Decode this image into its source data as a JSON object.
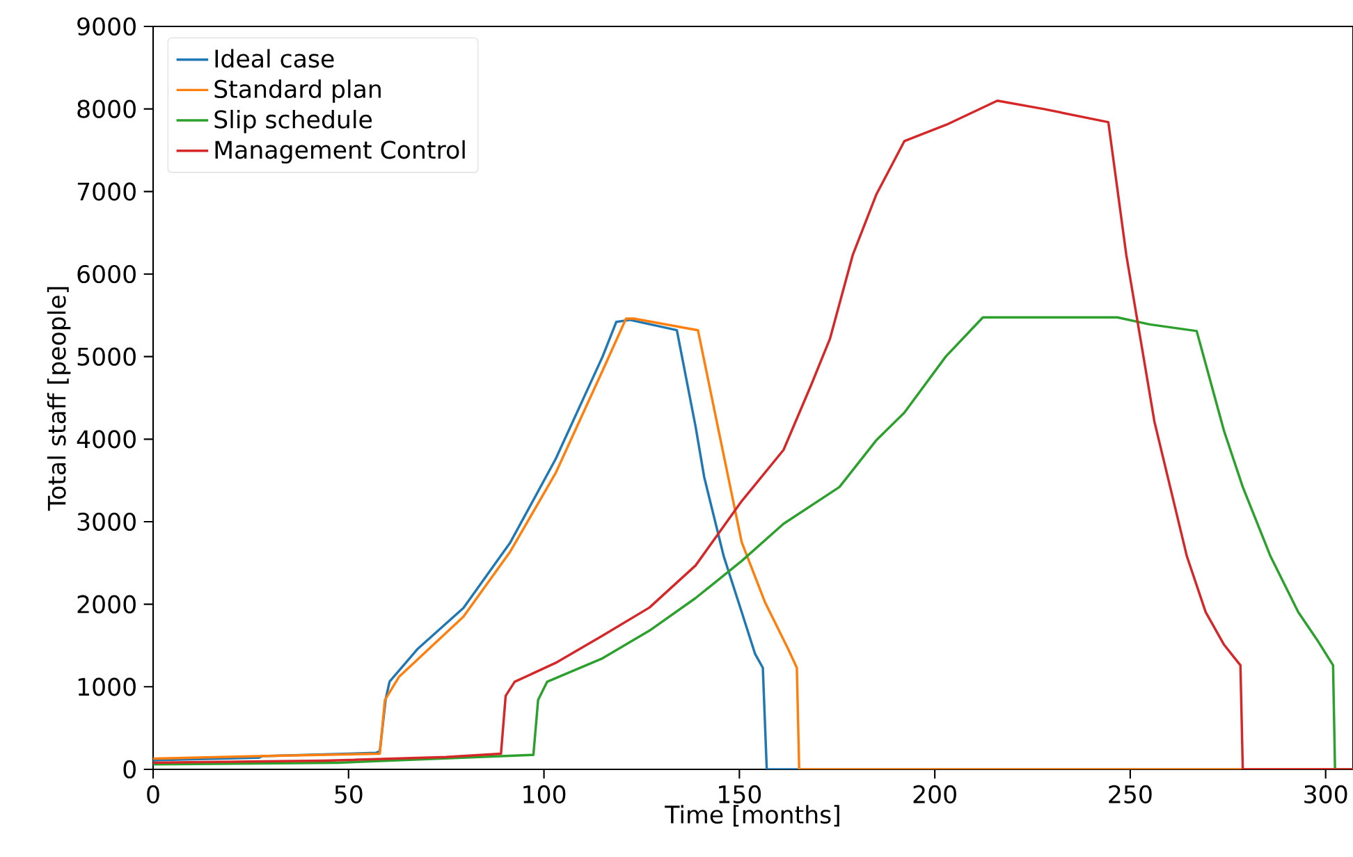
{
  "chart_data": {
    "type": "line",
    "xlabel": "Time [months]",
    "ylabel": "Total staff [people]",
    "xlim": [
      0,
      307
    ],
    "ylim": [
      0,
      9000
    ],
    "xticks": [
      0,
      50,
      100,
      150,
      200,
      250,
      300
    ],
    "yticks": [
      0,
      1000,
      2000,
      3000,
      4000,
      5000,
      6000,
      7000,
      8000,
      9000
    ],
    "legend": "top left",
    "series": [
      {
        "name": "Ideal case",
        "color": "#1f77b4",
        "x": [
          0,
          27,
          28,
          57,
          58,
          59.5,
          60.5,
          67.6,
          79.4,
          91.4,
          103,
          115,
          118.5,
          122,
          134,
          138.8,
          141,
          146,
          150.6,
          154,
          156,
          157,
          307
        ],
        "values": [
          110,
          140,
          160,
          200,
          220,
          850,
          1062,
          1455,
          1955,
          2750,
          3760,
          5000,
          5420,
          5445,
          5320,
          4150,
          3540,
          2580,
          1905,
          1400,
          1230,
          0,
          0
        ]
      },
      {
        "name": "Standard plan",
        "color": "#ff7f0e",
        "x": [
          0,
          27,
          58,
          59.3,
          62.9,
          79.4,
          91.4,
          103,
          115,
          121,
          123,
          139.4,
          144.7,
          150.6,
          156.6,
          162.5,
          164.7,
          165.3,
          307
        ],
        "values": [
          130,
          160,
          190,
          840,
          1120,
          1850,
          2640,
          3590,
          4830,
          5460,
          5460,
          5320,
          4100,
          2750,
          2020,
          1455,
          1230,
          0,
          0
        ]
      },
      {
        "name": "Slip schedule",
        "color": "#2ca02c",
        "x": [
          0,
          47.4,
          97.3,
          98.5,
          100.8,
          115,
          127,
          138.8,
          150.6,
          161.3,
          175.6,
          185,
          192.2,
          202.8,
          212.3,
          246.7,
          255,
          267,
          274,
          278.8,
          285.9,
          293,
          297.8,
          301.9,
          302.4,
          307
        ],
        "values": [
          60,
          80,
          175,
          840,
          1060,
          1345,
          1680,
          2075,
          2525,
          2975,
          3420,
          3985,
          4320,
          5000,
          5475,
          5475,
          5390,
          5310,
          4100,
          3420,
          2580,
          1905,
          1570,
          1260,
          0,
          0
        ]
      },
      {
        "name": "Management Control",
        "color": "#d62728",
        "x": [
          0,
          44,
          75,
          89,
          90.2,
          92.5,
          103,
          115,
          127,
          138.8,
          150.6,
          161.3,
          168.4,
          173.2,
          179,
          185,
          192.2,
          203,
          216,
          227.8,
          244.4,
          249,
          256.2,
          264.5,
          269.3,
          274,
          278.2,
          278.8,
          307
        ],
        "values": [
          80,
          105,
          150,
          190,
          890,
          1060,
          1290,
          1620,
          1960,
          2470,
          3250,
          3870,
          4660,
          5220,
          6230,
          6960,
          7610,
          7810,
          8100,
          8000,
          7840,
          6230,
          4210,
          2580,
          1905,
          1510,
          1260,
          0,
          0
        ]
      }
    ]
  }
}
